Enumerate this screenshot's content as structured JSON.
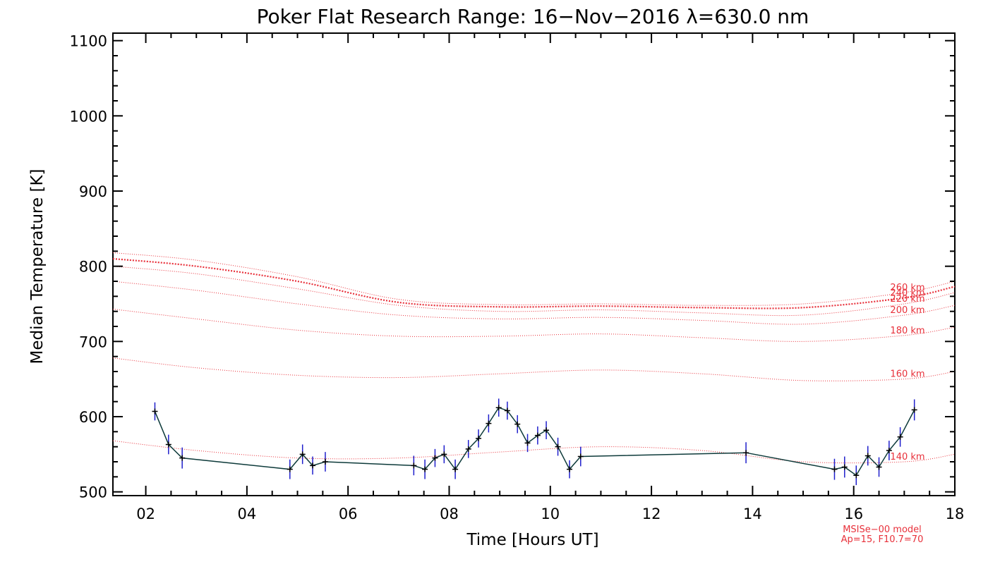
{
  "chart_data": {
    "type": "line",
    "title": "Poker Flat Research Range: 16−Nov−2016 λ=630.0 nm",
    "xlabel": "Time [Hours UT]",
    "ylabel": "Median Temperature [K]",
    "xlim": [
      1.35,
      18
    ],
    "ylim": [
      495,
      1110
    ],
    "x_ticks": [
      2,
      4,
      6,
      8,
      10,
      12,
      14,
      16,
      18
    ],
    "x_tick_labels": [
      "02",
      "04",
      "06",
      "08",
      "10",
      "12",
      "14",
      "16",
      "18"
    ],
    "y_ticks": [
      500,
      600,
      700,
      800,
      900,
      1000,
      1100
    ],
    "y_tick_labels": [
      "500",
      "600",
      "700",
      "800",
      "900",
      "1000",
      "1100"
    ],
    "grid": false,
    "colors": {
      "data_line": "#0d3a3a",
      "error_bar": "#1f1fcc",
      "marker": "#000000",
      "model": "#e8303a",
      "axis": "#000000"
    },
    "series": [
      {
        "name": "Median Temperature",
        "x": [
          2.18,
          2.45,
          2.72,
          4.85,
          5.1,
          5.3,
          5.55,
          7.3,
          7.52,
          7.72,
          7.9,
          8.12,
          8.38,
          8.58,
          8.78,
          8.98,
          9.15,
          9.35,
          9.55,
          9.75,
          9.92,
          10.15,
          10.38,
          10.6,
          13.87,
          15.62,
          15.82,
          16.05,
          16.28,
          16.5,
          16.7,
          16.92,
          17.2
        ],
        "y": [
          607,
          563,
          545,
          530,
          550,
          535,
          540,
          535,
          530,
          545,
          550,
          530,
          557,
          571,
          591,
          612,
          608,
          590,
          565,
          575,
          582,
          560,
          530,
          547,
          552,
          530,
          533,
          522,
          548,
          533,
          555,
          573,
          609
        ],
        "err": [
          12,
          13,
          14,
          13,
          13,
          12,
          13,
          13,
          13,
          12,
          12,
          13,
          12,
          12,
          12,
          12,
          12,
          12,
          12,
          12,
          12,
          12,
          12,
          13,
          14,
          14,
          14,
          13,
          13,
          13,
          13,
          13,
          14
        ]
      }
    ],
    "model_curves": [
      {
        "label": "140 km",
        "x": [
          1.35,
          3,
          5,
          7,
          9,
          11,
          13,
          15,
          17,
          18
        ],
        "y": [
          568,
          555,
          545,
          545,
          553,
          560,
          555,
          540,
          540,
          550
        ]
      },
      {
        "label": "160 km",
        "x": [
          1.35,
          3,
          5,
          7,
          9,
          11,
          13,
          15,
          17,
          18
        ],
        "y": [
          678,
          665,
          655,
          652,
          657,
          662,
          657,
          648,
          650,
          660
        ]
      },
      {
        "label": "180 km",
        "x": [
          1.35,
          3,
          5,
          7,
          9,
          11,
          13,
          15,
          17,
          18
        ],
        "y": [
          743,
          730,
          715,
          707,
          707,
          710,
          705,
          700,
          708,
          719
        ]
      },
      {
        "label": "200 km",
        "x": [
          1.35,
          3,
          5,
          7,
          9,
          11,
          13,
          15,
          17,
          18
        ],
        "y": [
          780,
          768,
          750,
          735,
          730,
          732,
          728,
          723,
          735,
          748
        ]
      },
      {
        "label": "220 km",
        "x": [
          1.35,
          3,
          5,
          7,
          9,
          11,
          13,
          15,
          17,
          18
        ],
        "y": [
          800,
          790,
          770,
          748,
          740,
          742,
          738,
          735,
          750,
          765
        ]
      },
      {
        "label": "240 km",
        "x": [
          1.35,
          3,
          5,
          7,
          9,
          11,
          13,
          15,
          17,
          18
        ],
        "y": [
          810,
          800,
          780,
          752,
          746,
          747,
          745,
          745,
          758,
          773
        ]
      },
      {
        "label": "260 km",
        "x": [
          1.35,
          3,
          5,
          7,
          9,
          11,
          13,
          15,
          17,
          18
        ],
        "y": [
          818,
          808,
          786,
          756,
          749,
          750,
          748,
          750,
          765,
          780
        ]
      }
    ],
    "notes": [
      "MSISe−00 model",
      "Ap=15, F10.7=70"
    ]
  }
}
